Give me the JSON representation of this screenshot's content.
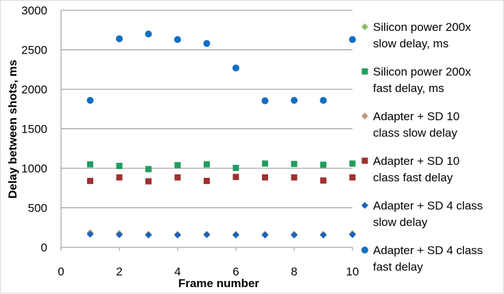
{
  "chart_data": {
    "type": "scatter",
    "title": "",
    "xlabel": "Frame number",
    "ylabel": "Delay between shots, ms",
    "xlim": [
      0,
      10
    ],
    "ylim": [
      0,
      3000
    ],
    "x_ticks": [
      0,
      2,
      4,
      6,
      8,
      10
    ],
    "y_ticks": [
      0,
      500,
      1000,
      1500,
      2000,
      2500,
      3000
    ],
    "grid": "horizontal",
    "legend_position": "right",
    "x": [
      1,
      2,
      3,
      4,
      5,
      6,
      7,
      8,
      9,
      10
    ],
    "series": [
      {
        "name": "Silicon power 200x slow delay, ms",
        "legend_lines": [
          "Silicon power 200x",
          "slow delay, ms"
        ],
        "marker": "diamond",
        "color": "#8fbe6a",
        "values": [
          185,
          175,
          165,
          165,
          165,
          165,
          165,
          165,
          165,
          175
        ]
      },
      {
        "name": "Silicon power 200x fast delay, ms",
        "legend_lines": [
          "Silicon power 200x",
          "fast delay, ms"
        ],
        "marker": "square",
        "color": "#1f9e5e",
        "values": [
          1050,
          1030,
          990,
          1040,
          1050,
          1005,
          1060,
          1055,
          1045,
          1060
        ]
      },
      {
        "name": "Adapter + SD 10 class slow delay",
        "legend_lines": [
          "Adapter + SD 10",
          "class slow delay"
        ],
        "marker": "diamond",
        "color": "#c3967e",
        "values": [
          180,
          170,
          160,
          160,
          160,
          160,
          160,
          160,
          160,
          170
        ]
      },
      {
        "name": "Adapter + SD 10 class fast delay",
        "legend_lines": [
          "Adapter + SD 10",
          "class fast delay"
        ],
        "marker": "square",
        "color": "#a0302f",
        "values": [
          840,
          885,
          835,
          885,
          840,
          890,
          885,
          885,
          845,
          885
        ]
      },
      {
        "name": "Adapter + SD 4 class slow delay",
        "legend_lines": [
          "Adapter + SD 4 class",
          "slow delay"
        ],
        "marker": "diamond",
        "color": "#1a63b8",
        "values": [
          165,
          160,
          155,
          155,
          160,
          155,
          155,
          155,
          155,
          160
        ]
      },
      {
        "name": "Adapter + SD 4 class fast delay",
        "legend_lines": [
          "Adapter + SD 4 class",
          "fast delay"
        ],
        "marker": "circle",
        "color": "#0f6fc1",
        "values": [
          1860,
          2640,
          2700,
          2630,
          2580,
          2270,
          1855,
          1860,
          1860,
          2630
        ]
      }
    ]
  }
}
